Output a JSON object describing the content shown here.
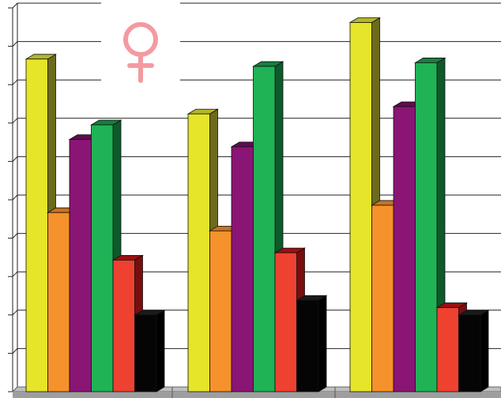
{
  "chart_data": {
    "type": "bar",
    "style": "3d",
    "categories": [
      "",
      "",
      ""
    ],
    "series": [
      {
        "color": "#e6e52a",
        "side": "#6b6b1a",
        "top": "#b5b52a",
        "values": [
          9.1,
          7.6,
          10.1
        ]
      },
      {
        "color": "#f5922b",
        "side": "#8a4e10",
        "top": "#c87320",
        "values": [
          4.9,
          4.4,
          5.1
        ]
      },
      {
        "color": "#8a1574",
        "side": "#4a0a3e",
        "top": "#5e0d50",
        "values": [
          6.9,
          6.7,
          7.8
        ]
      },
      {
        "color": "#1fb356",
        "side": "#0d5a2a",
        "top": "#15803e",
        "values": [
          7.3,
          8.9,
          9.0
        ]
      },
      {
        "color": "#ef4130",
        "side": "#7a0d0d",
        "top": "#9a1010",
        "values": [
          3.6,
          3.8,
          2.3
        ]
      },
      {
        "color": "#050505",
        "side": "#000000",
        "top": "#1a1a1a",
        "values": [
          2.1,
          2.5,
          2.1
        ]
      }
    ],
    "ylim": [
      0,
      10.5
    ],
    "grid": true,
    "legend": "none",
    "xlabel": "",
    "ylabel": ""
  },
  "annotation": {
    "symbol": "♀",
    "color": "#f49aa0"
  }
}
